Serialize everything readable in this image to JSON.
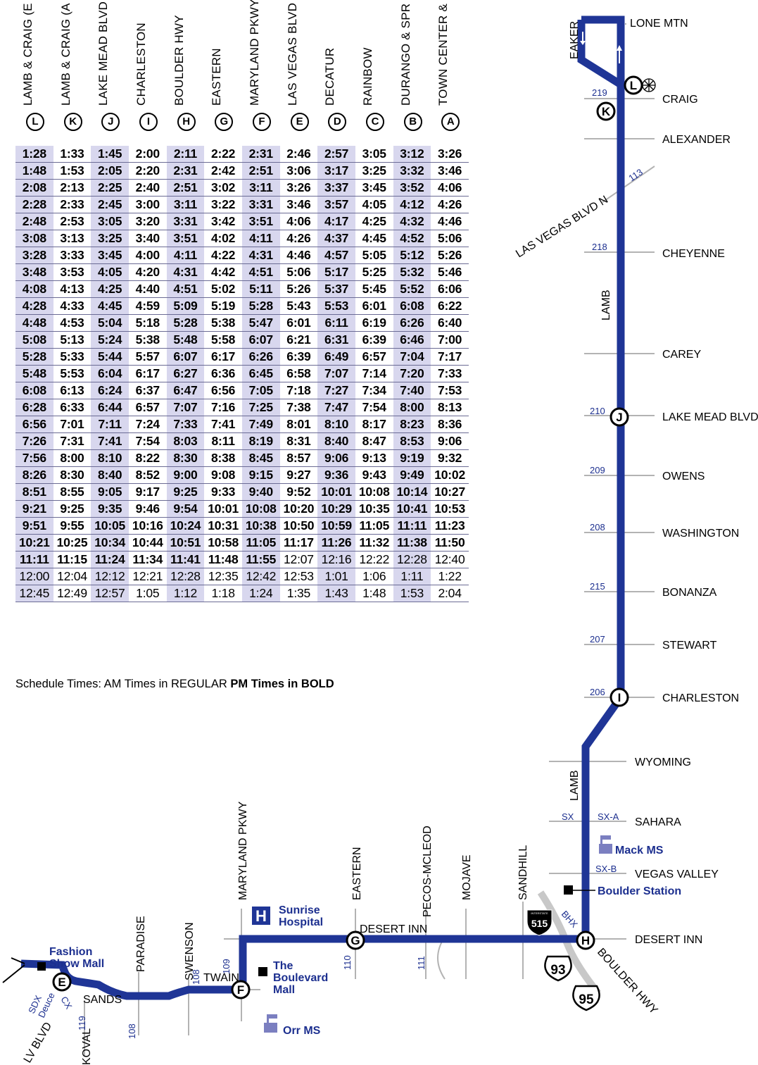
{
  "timepoints": [
    {
      "letter": "L",
      "name": "LAMB & CRAIG (E"
    },
    {
      "letter": "K",
      "name": "LAMB & CRAIG (A"
    },
    {
      "letter": "J",
      "name": "LAKE MEAD BLVD"
    },
    {
      "letter": "I",
      "name": "CHARLESTON"
    },
    {
      "letter": "H",
      "name": "BOULDER HWY"
    },
    {
      "letter": "G",
      "name": "EASTERN"
    },
    {
      "letter": "F",
      "name": "MARYLAND PKWY"
    },
    {
      "letter": "E",
      "name": "LAS VEGAS BLVD"
    },
    {
      "letter": "D",
      "name": "DECATUR"
    },
    {
      "letter": "C",
      "name": "RAINBOW"
    },
    {
      "letter": "B",
      "name": "DURANGO & SPR"
    },
    {
      "letter": "A",
      "name": "TOWN CENTER &"
    }
  ],
  "schedule": [
    [
      "1:28",
      "1:33",
      "1:45",
      "2:00",
      "2:11",
      "2:22",
      "2:31",
      "2:46",
      "2:57",
      "3:05",
      "3:12",
      "3:26"
    ],
    [
      "1:48",
      "1:53",
      "2:05",
      "2:20",
      "2:31",
      "2:42",
      "2:51",
      "3:06",
      "3:17",
      "3:25",
      "3:32",
      "3:46"
    ],
    [
      "2:08",
      "2:13",
      "2:25",
      "2:40",
      "2:51",
      "3:02",
      "3:11",
      "3:26",
      "3:37",
      "3:45",
      "3:52",
      "4:06"
    ],
    [
      "2:28",
      "2:33",
      "2:45",
      "3:00",
      "3:11",
      "3:22",
      "3:31",
      "3:46",
      "3:57",
      "4:05",
      "4:12",
      "4:26"
    ],
    [
      "2:48",
      "2:53",
      "3:05",
      "3:20",
      "3:31",
      "3:42",
      "3:51",
      "4:06",
      "4:17",
      "4:25",
      "4:32",
      "4:46"
    ],
    [
      "3:08",
      "3:13",
      "3:25",
      "3:40",
      "3:51",
      "4:02",
      "4:11",
      "4:26",
      "4:37",
      "4:45",
      "4:52",
      "5:06"
    ],
    [
      "3:28",
      "3:33",
      "3:45",
      "4:00",
      "4:11",
      "4:22",
      "4:31",
      "4:46",
      "4:57",
      "5:05",
      "5:12",
      "5:26"
    ],
    [
      "3:48",
      "3:53",
      "4:05",
      "4:20",
      "4:31",
      "4:42",
      "4:51",
      "5:06",
      "5:17",
      "5:25",
      "5:32",
      "5:46"
    ],
    [
      "4:08",
      "4:13",
      "4:25",
      "4:40",
      "4:51",
      "5:02",
      "5:11",
      "5:26",
      "5:37",
      "5:45",
      "5:52",
      "6:06"
    ],
    [
      "4:28",
      "4:33",
      "4:45",
      "4:59",
      "5:09",
      "5:19",
      "5:28",
      "5:43",
      "5:53",
      "6:01",
      "6:08",
      "6:22"
    ],
    [
      "4:48",
      "4:53",
      "5:04",
      "5:18",
      "5:28",
      "5:38",
      "5:47",
      "6:01",
      "6:11",
      "6:19",
      "6:26",
      "6:40"
    ],
    [
      "5:08",
      "5:13",
      "5:24",
      "5:38",
      "5:48",
      "5:58",
      "6:07",
      "6:21",
      "6:31",
      "6:39",
      "6:46",
      "7:00"
    ],
    [
      "5:28",
      "5:33",
      "5:44",
      "5:57",
      "6:07",
      "6:17",
      "6:26",
      "6:39",
      "6:49",
      "6:57",
      "7:04",
      "7:17"
    ],
    [
      "5:48",
      "5:53",
      "6:04",
      "6:17",
      "6:27",
      "6:36",
      "6:45",
      "6:58",
      "7:07",
      "7:14",
      "7:20",
      "7:33"
    ],
    [
      "6:08",
      "6:13",
      "6:24",
      "6:37",
      "6:47",
      "6:56",
      "7:05",
      "7:18",
      "7:27",
      "7:34",
      "7:40",
      "7:53"
    ],
    [
      "6:28",
      "6:33",
      "6:44",
      "6:57",
      "7:07",
      "7:16",
      "7:25",
      "7:38",
      "7:47",
      "7:54",
      "8:00",
      "8:13"
    ],
    [
      "6:56",
      "7:01",
      "7:11",
      "7:24",
      "7:33",
      "7:41",
      "7:49",
      "8:01",
      "8:10",
      "8:17",
      "8:23",
      "8:36"
    ],
    [
      "7:26",
      "7:31",
      "7:41",
      "7:54",
      "8:03",
      "8:11",
      "8:19",
      "8:31",
      "8:40",
      "8:47",
      "8:53",
      "9:06"
    ],
    [
      "7:56",
      "8:00",
      "8:10",
      "8:22",
      "8:30",
      "8:38",
      "8:45",
      "8:57",
      "9:06",
      "9:13",
      "9:19",
      "9:32"
    ],
    [
      "8:26",
      "8:30",
      "8:40",
      "8:52",
      "9:00",
      "9:08",
      "9:15",
      "9:27",
      "9:36",
      "9:43",
      "9:49",
      "10:02"
    ],
    [
      "8:51",
      "8:55",
      "9:05",
      "9:17",
      "9:25",
      "9:33",
      "9:40",
      "9:52",
      "10:01",
      "10:08",
      "10:14",
      "10:27"
    ],
    [
      "9:21",
      "9:25",
      "9:35",
      "9:46",
      "9:54",
      "10:01",
      "10:08",
      "10:20",
      "10:29",
      "10:35",
      "10:41",
      "10:53"
    ],
    [
      "9:51",
      "9:55",
      "10:05",
      "10:16",
      "10:24",
      "10:31",
      "10:38",
      "10:50",
      "10:59",
      "11:05",
      "11:11",
      "11:23"
    ],
    [
      "10:21",
      "10:25",
      "10:34",
      "10:44",
      "10:51",
      "10:58",
      "11:05",
      "11:17",
      "11:26",
      "11:32",
      "11:38",
      "11:50"
    ],
    [
      "11:11",
      "11:15",
      "11:24",
      "11:34",
      "11:41",
      "11:48",
      "11:55",
      "12:07",
      "12:16",
      "12:22",
      "12:28",
      "12:40"
    ],
    [
      "12:00",
      "12:04",
      "12:12",
      "12:21",
      "12:28",
      "12:35",
      "12:42",
      "12:53",
      "1:01",
      "1:06",
      "1:11",
      "1:22"
    ],
    [
      "12:45",
      "12:49",
      "12:57",
      "1:05",
      "1:12",
      "1:18",
      "1:24",
      "1:35",
      "1:43",
      "1:48",
      "1:53",
      "2:04"
    ]
  ],
  "pm_bold_counts": [
    27,
    27,
    27,
    27,
    27,
    27,
    27,
    26,
    26,
    26,
    26,
    26,
    27,
    27,
    27,
    27,
    27,
    27,
    27,
    27,
    27,
    27,
    27,
    27,
    7,
    0,
    0
  ],
  "note": {
    "prefix": "Schedule Times: AM Times in REGULAR ",
    "bold": "PM Times in BOLD"
  },
  "colors": {
    "route": "#1f3596",
    "row_shade": "#d8d7ee",
    "street": "#b3b3b3",
    "label_blue": "#1c2f8f"
  },
  "map": {
    "route_number_labels": [
      "219",
      "113",
      "218",
      "210",
      "209",
      "208",
      "215",
      "207",
      "206",
      "110",
      "111",
      "109",
      "108",
      "108",
      "119"
    ],
    "streets_right": [
      "LONE MTN",
      "CRAIG",
      "ALEXANDER",
      "CHEYENNE",
      "CAREY",
      "LAKE MEAD BLVD",
      "OWENS",
      "WASHINGTON",
      "BONANZA",
      "STEWART",
      "CHARLESTON",
      "WYOMING",
      "SAHARA",
      "VEGAS VALLEY",
      "DESERT INN"
    ],
    "street_misc": [
      "EAKER",
      "LAS VEGAS BLVD N",
      "LAMB",
      "LAMB",
      "SX",
      "SX-A",
      "SX-B",
      "BHX",
      "BOULDER HWY",
      "DESERT INN"
    ],
    "streets_vertical": [
      "MARYLAND PKWY",
      "EASTERN",
      "PECOS-MCLEOD",
      "MOJAVE",
      "SANDHILL",
      "SWENSON",
      "PARADISE"
    ],
    "west_labels": [
      "SANDS",
      "TWAIN",
      "KOVAL",
      "LV BLVD",
      "SDX",
      "Deuce",
      "CX"
    ],
    "landmarks": [
      "Mack MS",
      "Boulder Station",
      "Sunrise",
      "Hospital",
      "The",
      "Boulevard",
      "Mall",
      "Fashion",
      "Show Mall",
      "Orr MS"
    ],
    "highways": [
      "515",
      "93",
      "95"
    ],
    "interstate_word": "INTERSTATE"
  }
}
